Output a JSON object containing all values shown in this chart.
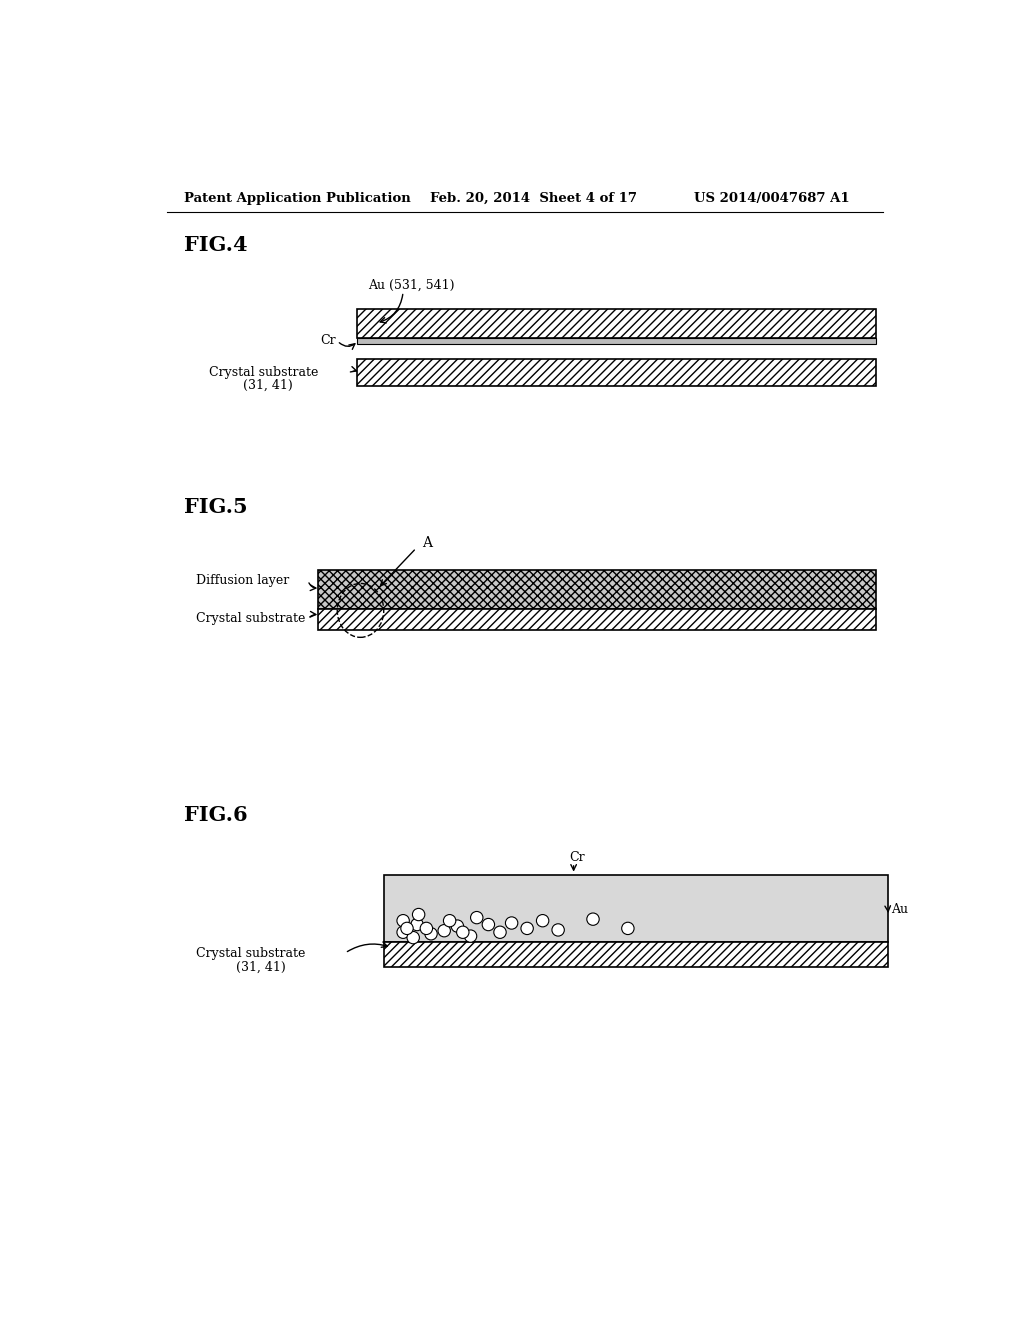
{
  "header_left": "Patent Application Publication",
  "header_mid": "Feb. 20, 2014  Sheet 4 of 17",
  "header_right": "US 2014/0047687 A1",
  "fig4_label": "FIG.4",
  "fig5_label": "FIG.5",
  "fig6_label": "FIG.6",
  "background": "#ffffff",
  "text_color": "#000000",
  "fig4": {
    "au_label": "Au (531, 541)",
    "cr_label": "Cr",
    "crystal_label": "Crystal substrate",
    "crystal_sub_label": "(31, 41)"
  },
  "fig5": {
    "diffusion_label": "Diffusion layer",
    "crystal_label": "Crystal substrate",
    "A_label": "A"
  },
  "fig6": {
    "cr_label": "Cr",
    "au_label": "Au",
    "crystal_label": "Crystal substrate",
    "crystal_sub_label": "(31, 41)"
  }
}
